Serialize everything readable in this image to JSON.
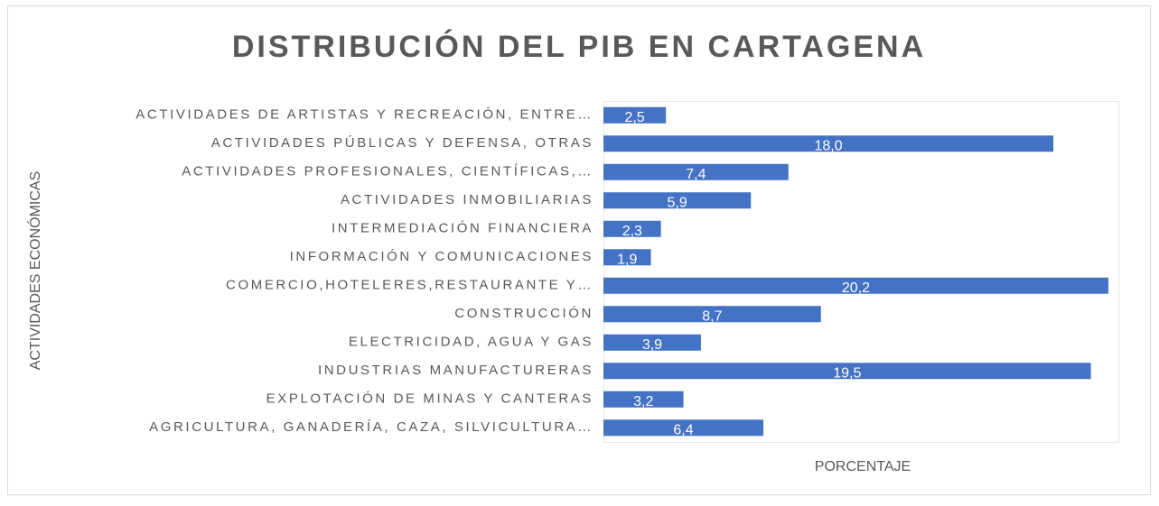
{
  "chart_data": {
    "type": "hbar",
    "title": "DISTRIBUCIÓN DEL PIB EN CARTAGENA",
    "x_label": "PORCENTAJE",
    "y_label": "ACTIVIDADES ECONÓMICAS",
    "categories": [
      "ACTIVIDADES DE ARTISTAS Y RECREACIÓN, ENTRE…",
      "ACTIVIDADES PÚBLICAS Y DEFENSA, OTRAS",
      "ACTIVIDADES PROFESIONALES, CIENTÍFICAS,…",
      "ACTIVIDADES INMOBILIARIAS",
      "INTERMEDIACIÓN FINANCIERA",
      "INFORMACIÓN Y COMUNICACIONES",
      "COMERCIO,HOTELERES,RESTAURANTE Y…",
      "CONSTRUCCIÓN",
      "ELECTRICIDAD, AGUA Y GAS",
      "INDUSTRIAS MANUFACTURERAS",
      "EXPLOTACIÓN DE MINAS Y CANTERAS",
      "AGRICULTURA, GANADERÍA, CAZA, SILVICULTURA…"
    ],
    "values": [
      2.5,
      18.0,
      7.4,
      5.9,
      2.3,
      1.9,
      20.2,
      8.7,
      3.9,
      19.5,
      3.2,
      6.4
    ],
    "value_labels": [
      "2,5",
      "18,0",
      "7,4",
      "5,9",
      "2,3",
      "1,9",
      "20,2",
      "8,7",
      "3,9",
      "19,5",
      "3,2",
      "6,4"
    ],
    "color": "#4472c4",
    "xlim": [
      0,
      20.6
    ]
  }
}
